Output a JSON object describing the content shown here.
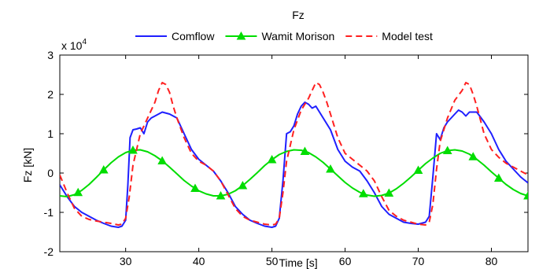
{
  "chart_data": {
    "type": "line",
    "title": "Fz",
    "xlabel": "Time [s]",
    "ylabel": "Fz [kN]",
    "multiplier": "x 10",
    "multiplier_exp": "4",
    "xlim": [
      21,
      85
    ],
    "ylim": [
      -2,
      3
    ],
    "xticks": [
      30,
      40,
      50,
      60,
      70,
      80
    ],
    "yticks": [
      -2,
      -1,
      0,
      1,
      2,
      3
    ],
    "grid": false,
    "legend_position": "top",
    "series": [
      {
        "name": "Comflow",
        "color": "#1f1fff",
        "style": "solid",
        "x": [
          21,
          22,
          23,
          24,
          25,
          26,
          27,
          28,
          29,
          29.5,
          30,
          30.3,
          30.6,
          31,
          31.5,
          32,
          32.5,
          33,
          33.5,
          34,
          35,
          36,
          37,
          38,
          39,
          40,
          41,
          42,
          43,
          44,
          45,
          46,
          47,
          48,
          49,
          50,
          50.5,
          51,
          51.5,
          52,
          52.5,
          53,
          53.5,
          54,
          54.5,
          55,
          55.5,
          56,
          57,
          58,
          59,
          60,
          61,
          62,
          63,
          64,
          65,
          66,
          67,
          68,
          69,
          70,
          71,
          71.5,
          72,
          72.5,
          73,
          73.5,
          74,
          74.5,
          75,
          75.5,
          76,
          76.5,
          77,
          78,
          79,
          80,
          81,
          82,
          83,
          84,
          85
        ],
        "y": [
          -0.3,
          -0.6,
          -0.85,
          -1.0,
          -1.1,
          -1.2,
          -1.28,
          -1.35,
          -1.38,
          -1.35,
          -1.2,
          -0.3,
          0.9,
          1.1,
          1.12,
          1.15,
          1.0,
          1.3,
          1.4,
          1.45,
          1.55,
          1.5,
          1.4,
          1.0,
          0.6,
          0.35,
          0.2,
          0.05,
          -0.2,
          -0.5,
          -0.85,
          -1.05,
          -1.2,
          -1.28,
          -1.35,
          -1.38,
          -1.35,
          -1.15,
          -0.2,
          1.0,
          1.05,
          1.2,
          1.5,
          1.7,
          1.8,
          1.75,
          1.65,
          1.7,
          1.4,
          1.1,
          0.6,
          0.3,
          0.15,
          0.05,
          -0.2,
          -0.5,
          -0.85,
          -1.05,
          -1.15,
          -1.25,
          -1.28,
          -1.3,
          -1.25,
          -1.1,
          -0.1,
          1.0,
          0.85,
          1.15,
          1.3,
          1.4,
          1.5,
          1.6,
          1.55,
          1.45,
          1.55,
          1.55,
          1.3,
          1.0,
          0.6,
          0.3,
          0.1,
          -0.1,
          -0.25
        ]
      },
      {
        "name": "Wamit Morison",
        "color": "#00dd00",
        "style": "solid",
        "marker": "triangle",
        "x": [
          21,
          22,
          23,
          24,
          25,
          26,
          27,
          28,
          29,
          30,
          31,
          32,
          33,
          34,
          35,
          36,
          37,
          38,
          39,
          40,
          41,
          42,
          43,
          44,
          45,
          46,
          47,
          48,
          49,
          50,
          51,
          52,
          53,
          54,
          55,
          56,
          57,
          58,
          59,
          60,
          61,
          62,
          63,
          64,
          65,
          66,
          67,
          68,
          69,
          70,
          71,
          72,
          73,
          74,
          75,
          76,
          77,
          78,
          79,
          80,
          81,
          82,
          83,
          84,
          85
        ],
        "y": [
          -0.58,
          -0.6,
          -0.55,
          -0.44,
          -0.29,
          -0.11,
          0.08,
          0.26,
          0.41,
          0.52,
          0.58,
          0.59,
          0.54,
          0.44,
          0.31,
          0.15,
          -0.02,
          -0.19,
          -0.33,
          -0.45,
          -0.53,
          -0.58,
          -0.58,
          -0.54,
          -0.45,
          -0.32,
          -0.16,
          0.01,
          0.19,
          0.34,
          0.47,
          0.55,
          0.59,
          0.58,
          0.52,
          0.41,
          0.27,
          0.1,
          -0.07,
          -0.24,
          -0.38,
          -0.49,
          -0.56,
          -0.59,
          -0.57,
          -0.51,
          -0.4,
          -0.26,
          -0.1,
          0.07,
          0.24,
          0.38,
          0.5,
          0.57,
          0.59,
          0.56,
          0.48,
          0.35,
          0.2,
          0.03,
          -0.13,
          -0.29,
          -0.42,
          -0.52,
          -0.58
        ],
        "marker_x": [
          23.5,
          27,
          31,
          35,
          39.5,
          43,
          46,
          50,
          54.5,
          58,
          62.5,
          66,
          70,
          74,
          77.5,
          81,
          85
        ]
      },
      {
        "name": "Model test",
        "color": "#ff2020",
        "style": "dashed",
        "x": [
          21,
          22,
          23,
          24,
          25,
          26,
          27,
          28,
          29,
          29.5,
          30,
          30.5,
          31,
          32,
          33,
          34,
          34.5,
          35,
          35.5,
          36,
          36.5,
          37,
          38,
          39,
          40,
          41,
          42,
          43,
          44,
          45,
          46,
          47,
          48,
          49,
          50,
          50.5,
          51,
          51.5,
          52,
          53,
          54,
          55,
          55.5,
          56,
          56.5,
          57,
          57.5,
          58,
          59,
          60,
          61,
          62,
          63,
          64,
          65,
          66,
          67,
          68,
          69,
          70,
          71,
          71.5,
          72,
          72.5,
          73,
          74,
          75,
          76,
          76.5,
          77,
          77.5,
          78,
          79,
          80,
          81,
          82,
          83,
          84,
          85
        ],
        "y": [
          -0.05,
          -0.5,
          -0.9,
          -1.1,
          -1.18,
          -1.22,
          -1.25,
          -1.28,
          -1.32,
          -1.3,
          -1.15,
          -0.6,
          0.2,
          1.0,
          1.4,
          1.8,
          2.1,
          2.3,
          2.25,
          2.05,
          1.7,
          1.4,
          0.9,
          0.5,
          0.3,
          0.2,
          0.05,
          -0.2,
          -0.55,
          -0.9,
          -1.1,
          -1.2,
          -1.25,
          -1.3,
          -1.32,
          -1.3,
          -1.15,
          -0.5,
          0.3,
          1.1,
          1.6,
          1.9,
          2.1,
          2.3,
          2.25,
          2.05,
          1.8,
          1.5,
          0.9,
          0.5,
          0.35,
          0.2,
          0.05,
          -0.2,
          -0.6,
          -0.95,
          -1.1,
          -1.2,
          -1.25,
          -1.3,
          -1.32,
          -1.25,
          -0.8,
          0.1,
          0.8,
          1.4,
          1.85,
          2.1,
          2.3,
          2.25,
          2.0,
          1.7,
          1.0,
          0.6,
          0.4,
          0.25,
          0.15,
          0.05,
          -0.05
        ]
      }
    ]
  }
}
